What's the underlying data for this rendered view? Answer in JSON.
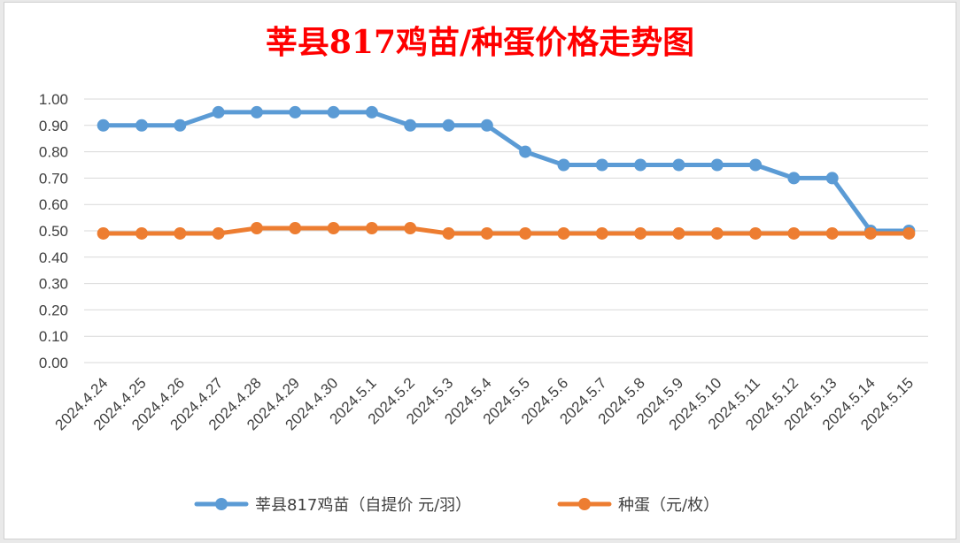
{
  "colors": {
    "title": "#ff0000",
    "series1": "#5b9bd5",
    "series2": "#ed7d31",
    "grid": "#d9d9d9",
    "text": "#404040"
  },
  "chart_data": {
    "type": "line",
    "title": "莘县817鸡苗/种蛋价格走势图",
    "xlabel": "",
    "ylabel": "",
    "ylim": [
      0,
      1.0
    ],
    "y_ticks": [
      "1.00",
      "0.90",
      "0.80",
      "0.70",
      "0.60",
      "0.50",
      "0.40",
      "0.30",
      "0.20",
      "0.10",
      "0.00"
    ],
    "grid": true,
    "legend_position": "bottom",
    "categories": [
      "2024.4.24",
      "2024.4.25",
      "2024.4.26",
      "2024.4.27",
      "2024.4.28",
      "2024.4.29",
      "2024.4.30",
      "2024.5.1",
      "2024.5.2",
      "2024.5.3",
      "2024.5.4",
      "2024.5.5",
      "2024.5.6",
      "2024.5.7",
      "2024.5.8",
      "2024.5.9",
      "2024.5.10",
      "2024.5.11",
      "2024.5.12",
      "2024.5.13",
      "2024.5.14",
      "2024.5.15"
    ],
    "series": [
      {
        "name": "莘县817鸡苗（自提价 元/羽）",
        "color": "#5b9bd5",
        "values": [
          0.9,
          0.9,
          0.9,
          0.95,
          0.95,
          0.95,
          0.95,
          0.95,
          0.9,
          0.9,
          0.9,
          0.8,
          0.75,
          0.75,
          0.75,
          0.75,
          0.75,
          0.75,
          0.7,
          0.7,
          0.5,
          0.5
        ]
      },
      {
        "name": "种蛋（元/枚）",
        "color": "#ed7d31",
        "values": [
          0.49,
          0.49,
          0.49,
          0.49,
          0.51,
          0.51,
          0.51,
          0.51,
          0.51,
          0.49,
          0.49,
          0.49,
          0.49,
          0.49,
          0.49,
          0.49,
          0.49,
          0.49,
          0.49,
          0.49,
          0.49,
          0.49
        ]
      }
    ]
  }
}
